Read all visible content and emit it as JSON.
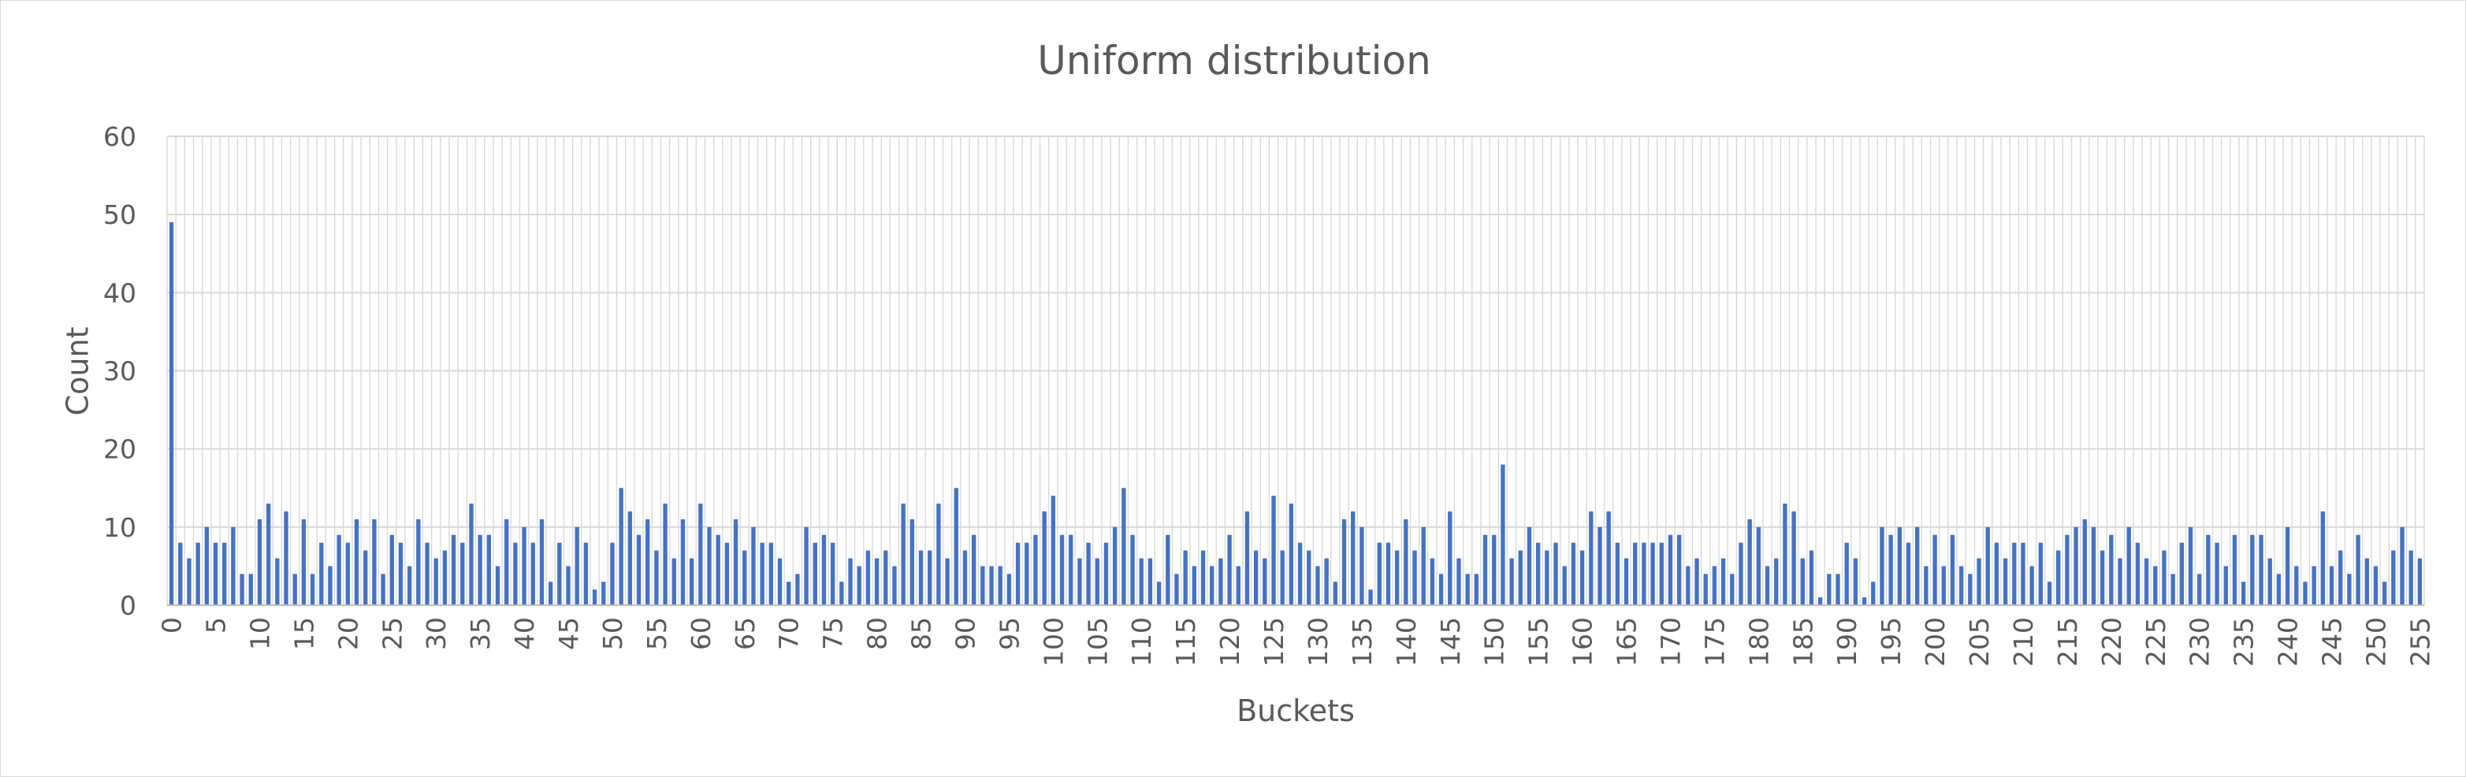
{
  "chart_data": {
    "type": "bar",
    "title": "Uniform distribution",
    "xlabel": "Buckets",
    "ylabel": "Count",
    "ylim": [
      0,
      60
    ],
    "yticks": [
      0,
      10,
      20,
      30,
      40,
      50,
      60
    ],
    "x_tick_step": 5,
    "legend": "none",
    "grid": "both",
    "series_color": "#4472c4",
    "categories_range": [
      0,
      255
    ],
    "values": [
      49,
      8,
      6,
      8,
      10,
      8,
      8,
      10,
      4,
      4,
      11,
      13,
      6,
      12,
      4,
      11,
      4,
      8,
      5,
      9,
      8,
      11,
      7,
      11,
      4,
      9,
      8,
      5,
      11,
      8,
      6,
      7,
      9,
      8,
      13,
      9,
      9,
      5,
      11,
      8,
      10,
      8,
      11,
      3,
      8,
      5,
      10,
      8,
      2,
      3,
      8,
      15,
      12,
      9,
      11,
      7,
      13,
      6,
      11,
      6,
      13,
      10,
      9,
      8,
      11,
      7,
      10,
      8,
      8,
      6,
      3,
      4,
      10,
      8,
      9,
      8,
      3,
      6,
      5,
      7,
      6,
      7,
      5,
      13,
      11,
      7,
      7,
      13,
      6,
      15,
      7,
      9,
      5,
      5,
      5,
      4,
      8,
      8,
      9,
      12,
      14,
      9,
      9,
      6,
      8,
      6,
      8,
      10,
      15,
      9,
      6,
      6,
      3,
      9,
      4,
      7,
      5,
      7,
      5,
      6,
      9,
      5,
      12,
      7,
      6,
      14,
      7,
      13,
      8,
      7,
      5,
      6,
      3,
      11,
      12,
      10,
      2,
      8,
      8,
      7,
      11,
      7,
      10,
      6,
      4,
      12,
      6,
      4,
      4,
      9,
      9,
      18,
      6,
      7,
      10,
      8,
      7,
      8,
      5,
      8,
      7,
      12,
      10,
      12,
      8,
      6,
      8,
      8,
      8,
      8,
      9,
      9,
      5,
      6,
      4,
      5,
      6,
      4,
      8,
      11,
      10,
      5,
      6,
      13,
      12,
      6,
      7,
      1,
      4,
      4,
      8,
      6,
      1,
      3,
      10,
      9,
      10,
      8,
      10,
      5,
      9,
      5,
      9,
      5,
      4,
      6,
      10,
      8,
      6,
      8,
      8,
      5,
      8,
      3,
      7,
      9,
      10,
      11,
      10,
      7,
      9,
      6,
      10,
      8,
      6,
      5,
      7,
      4,
      8,
      10,
      4,
      9,
      8,
      5,
      9,
      3,
      9,
      9,
      6,
      4,
      10,
      5,
      3,
      5,
      12,
      5,
      7,
      4,
      9,
      6,
      5,
      3,
      7,
      10,
      7,
      6
    ]
  }
}
